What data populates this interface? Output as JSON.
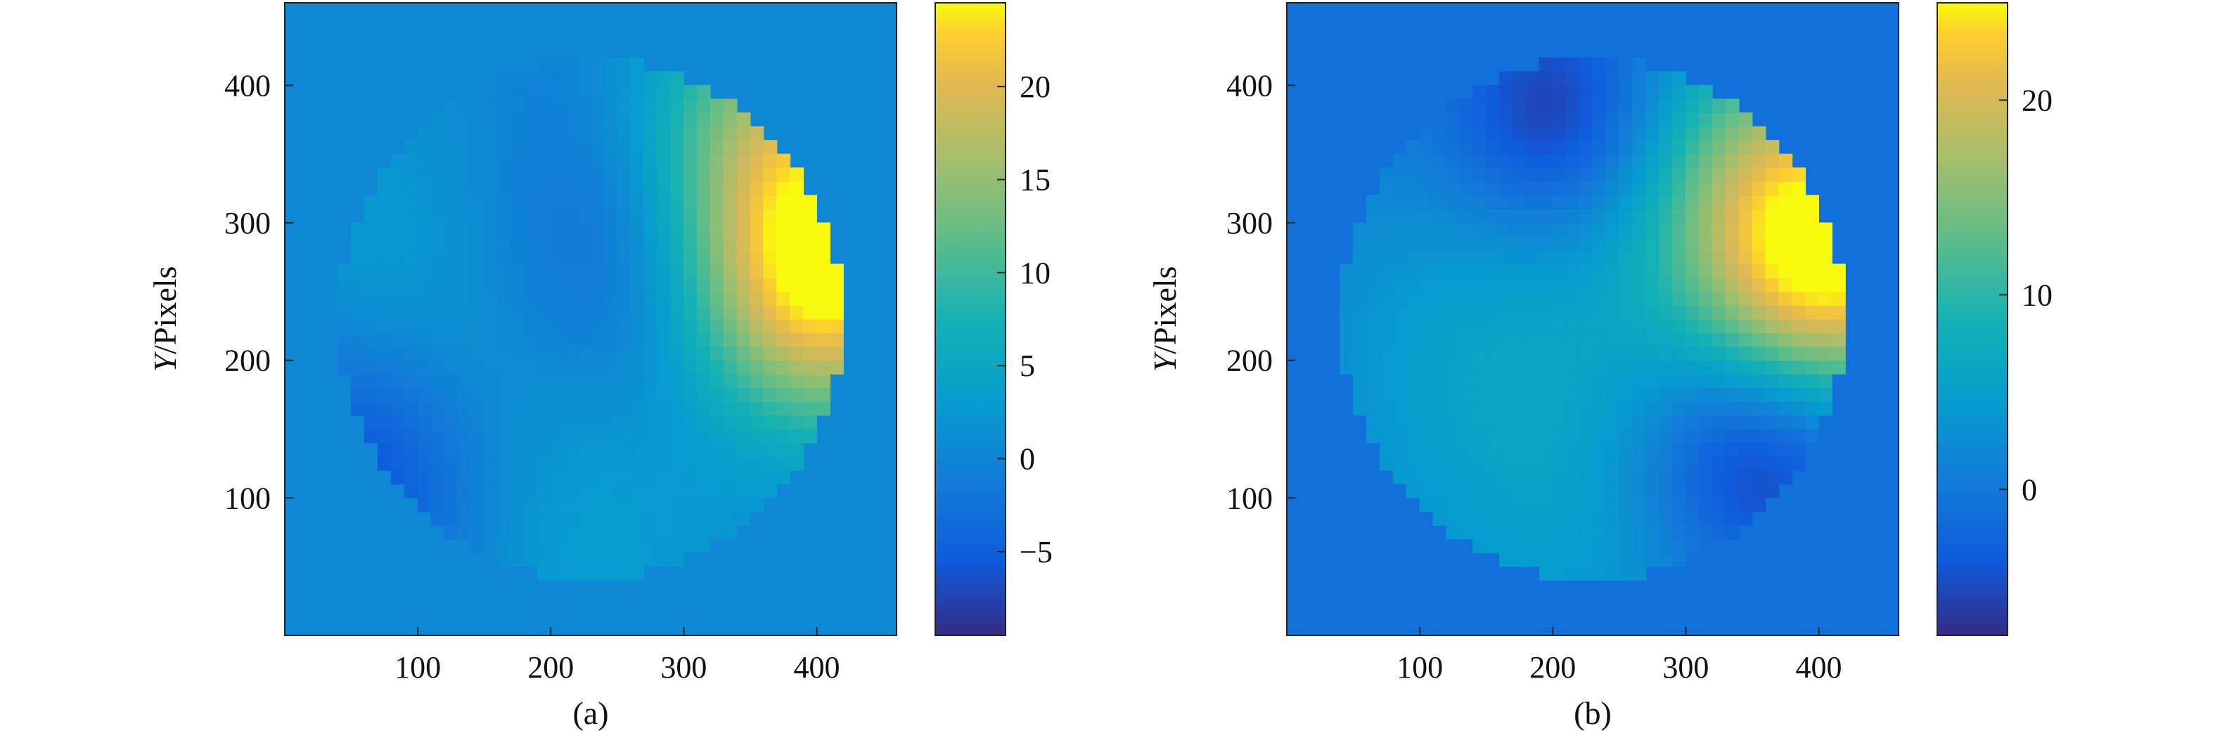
{
  "chart_data": [
    {
      "type": "heatmap",
      "caption": "(a)",
      "ylabel_var": "Y",
      "ylabel_unit": "/Pixels",
      "xlim": [
        0,
        460
      ],
      "ylim": [
        0,
        460
      ],
      "x_ticks": [
        100,
        200,
        300,
        400
      ],
      "y_ticks": [
        100,
        200,
        300,
        400
      ],
      "background_value": 0.5,
      "aperture": {
        "center_x": 230,
        "center_y": 230,
        "radius": 190
      },
      "colorbar": {
        "min": -9.5,
        "max": 24.5,
        "ticks": [
          -5,
          0,
          5,
          10,
          15,
          20
        ]
      },
      "surface_features": [
        {
          "x": 405,
          "y": 255,
          "value": 24,
          "spread": 70
        },
        {
          "x": 370,
          "y": 365,
          "value": 16,
          "spread": 75
        },
        {
          "x": 270,
          "y": 280,
          "value": -7,
          "spread": 95
        },
        {
          "x": 55,
          "y": 110,
          "value": -9,
          "spread": 75
        },
        {
          "x": 200,
          "y": 120,
          "value": 4.5,
          "spread": 120
        },
        {
          "x": 85,
          "y": 290,
          "value": 3,
          "spread": 100
        }
      ]
    },
    {
      "type": "heatmap",
      "caption": "(b)",
      "ylabel_var": "Y",
      "ylabel_unit": "/Pixels",
      "xlim": [
        0,
        460
      ],
      "ylim": [
        0,
        460
      ],
      "x_ticks": [
        100,
        200,
        300,
        400
      ],
      "y_ticks": [
        100,
        200,
        300,
        400
      ],
      "background_value": -1,
      "aperture": {
        "center_x": 230,
        "center_y": 230,
        "radius": 190
      },
      "colorbar": {
        "min": -7.5,
        "max": 25,
        "ticks": [
          0,
          10,
          20
        ]
      },
      "surface_features": [
        {
          "x": 410,
          "y": 270,
          "value": 23,
          "spread": 70
        },
        {
          "x": 360,
          "y": 355,
          "value": 10,
          "spread": 75
        },
        {
          "x": 205,
          "y": 375,
          "value": -8,
          "spread": 60
        },
        {
          "x": 350,
          "y": 130,
          "value": -8,
          "spread": 60
        },
        {
          "x": 175,
          "y": 195,
          "value": 6,
          "spread": 120
        },
        {
          "x": 230,
          "y": 45,
          "value": 2,
          "spread": 80
        }
      ]
    }
  ]
}
